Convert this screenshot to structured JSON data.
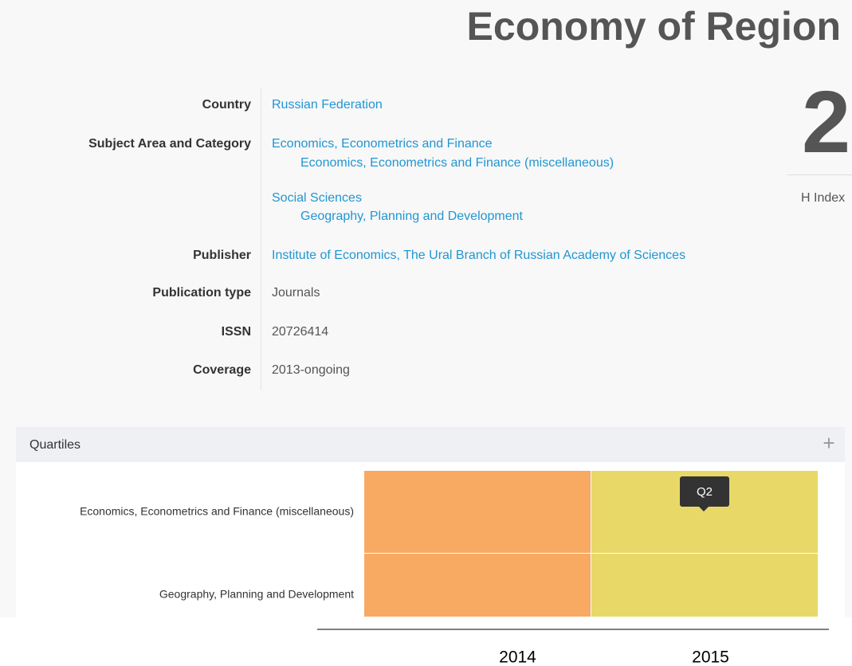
{
  "header": {
    "title": "Economy of Region",
    "h_index": "2",
    "h_index_label": "H Index"
  },
  "info": {
    "country": {
      "label": "Country",
      "value": "Russian Federation"
    },
    "subject": {
      "label": "Subject Area and Category",
      "areas": [
        {
          "name": "Economics, Econometrics and Finance",
          "categories": [
            "Economics, Econometrics and Finance (miscellaneous)"
          ]
        },
        {
          "name": "Social Sciences",
          "categories": [
            "Geography, Planning and Development"
          ]
        }
      ]
    },
    "publisher": {
      "label": "Publisher",
      "value": "Institute of Economics, The Ural Branch of Russian Academy of Sciences"
    },
    "publication_type": {
      "label": "Publication type",
      "value": "Journals"
    },
    "issn": {
      "label": "ISSN",
      "value": "20726414"
    },
    "coverage": {
      "label": "Coverage",
      "value": "2013-ongoing"
    }
  },
  "quartiles": {
    "title": "Quartiles",
    "categories": [
      "Economics, Econometrics and Finance (miscellaneous)",
      "Geography, Planning and Development"
    ],
    "years": [
      "2014",
      "2015"
    ],
    "cell_colors": [
      [
        "#f8aa62",
        "#e8d868"
      ],
      [
        "#f8aa62",
        "#e8d868"
      ]
    ],
    "tooltip": "Q2"
  }
}
